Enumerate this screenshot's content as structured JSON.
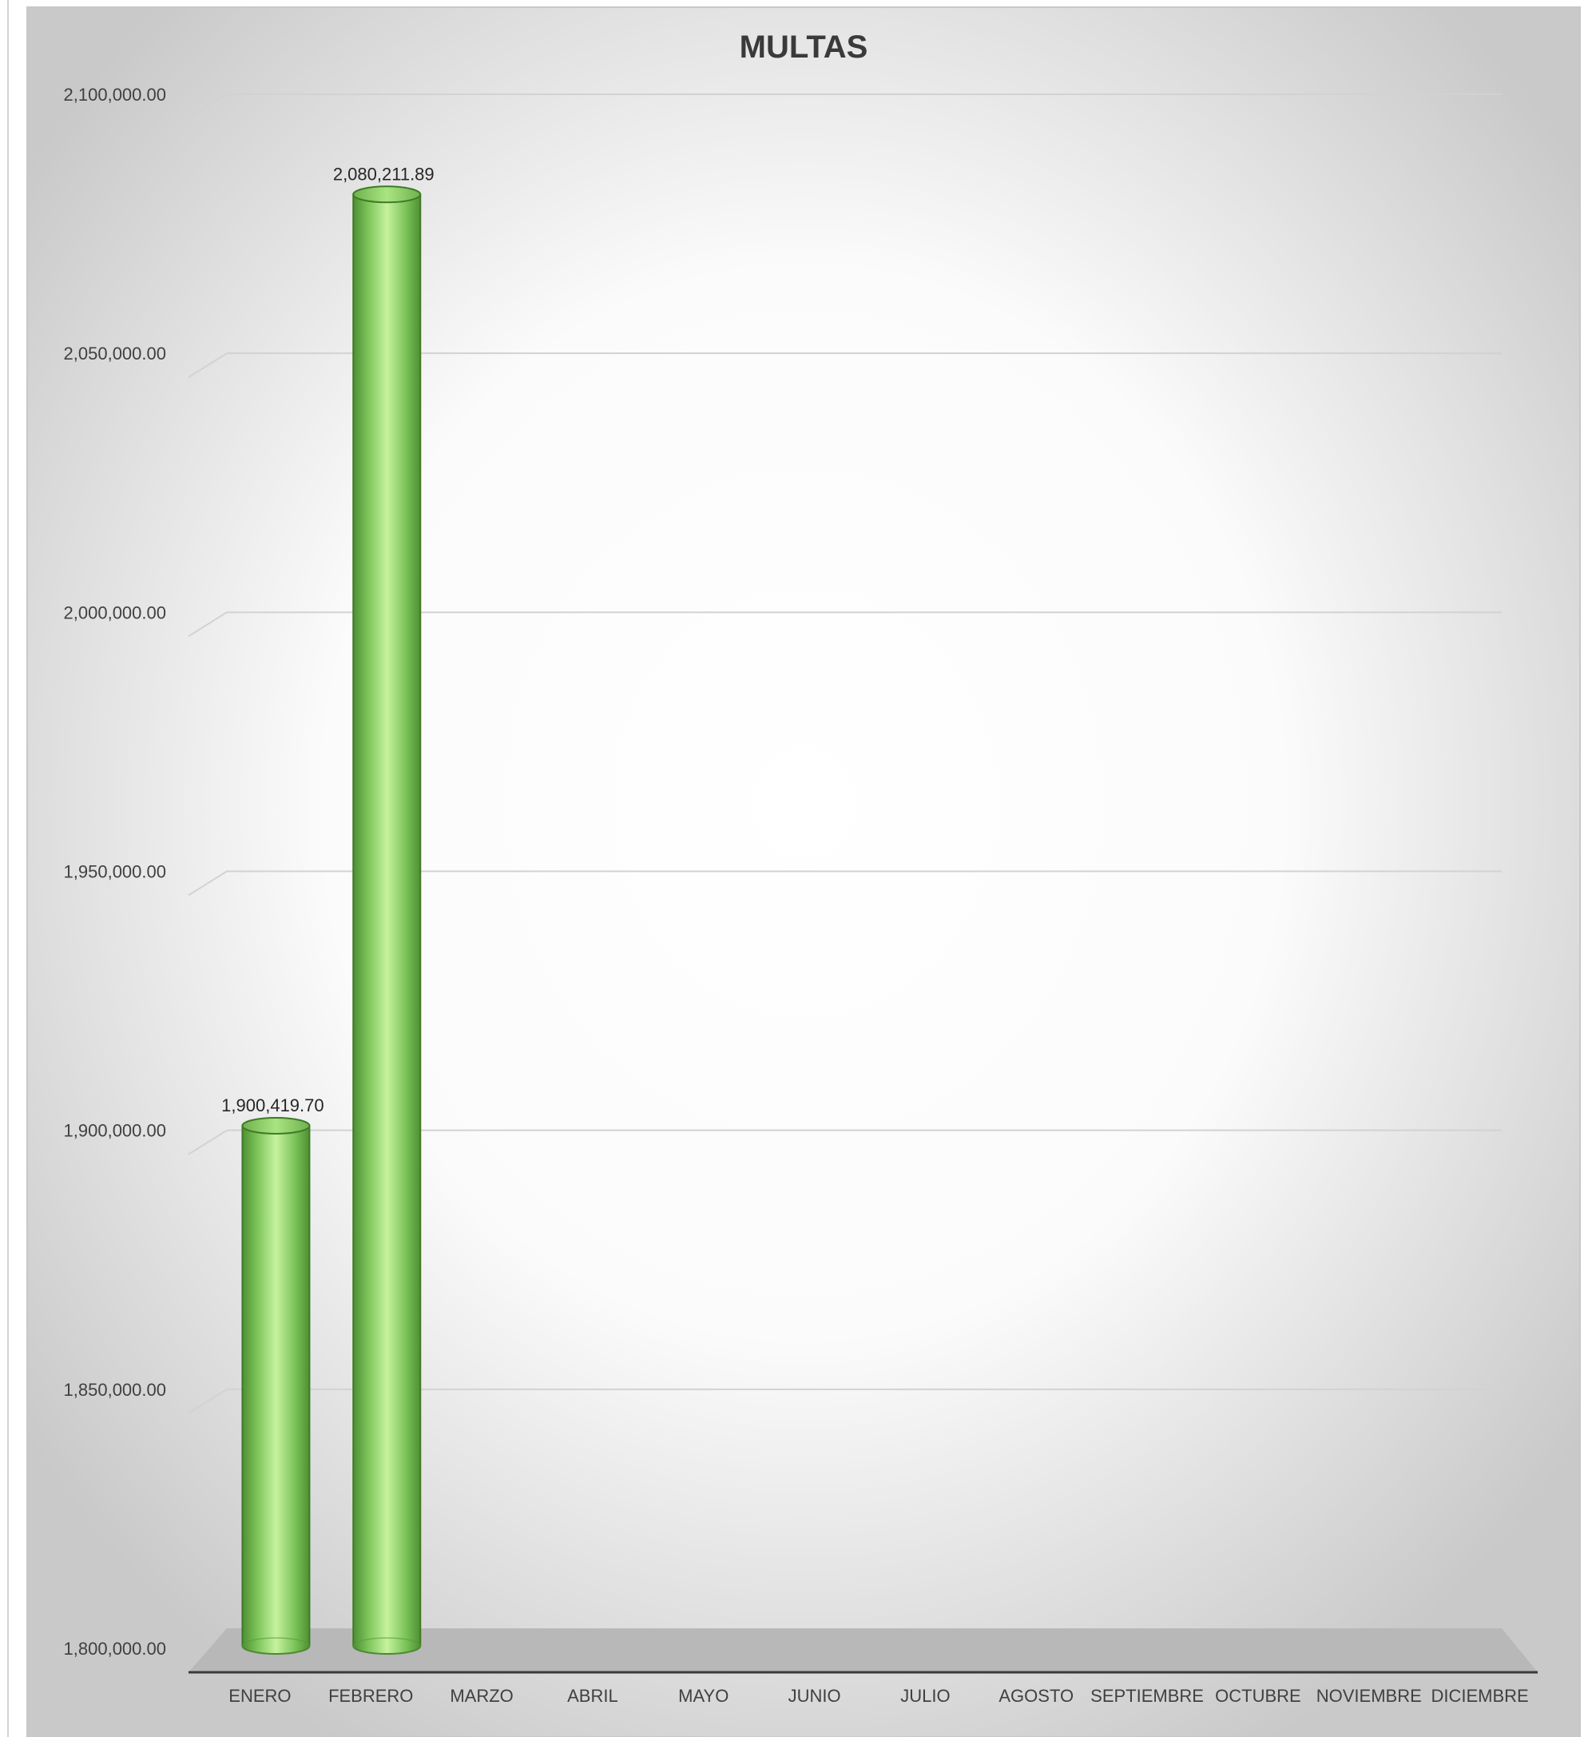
{
  "chart_data": {
    "type": "bar",
    "style": "3d-cylinder",
    "title": "MULTAS",
    "xlabel": "",
    "ylabel": "",
    "categories": [
      "ENERO",
      "FEBRERO",
      "MARZO",
      "ABRIL",
      "MAYO",
      "JUNIO",
      "JULIO",
      "AGOSTO",
      "SEPTIEMBRE",
      "OCTUBRE",
      "NOVIEMBRE",
      "DICIEMBRE"
    ],
    "values": [
      1900419.7,
      2080211.89,
      null,
      null,
      null,
      null,
      null,
      null,
      null,
      null,
      null,
      null
    ],
    "data_labels": [
      "1,900,419.70",
      "2,080,211.89",
      "",
      "",
      "",
      "",
      "",
      "",
      "",
      "",
      "",
      ""
    ],
    "ylim": [
      1800000,
      2100000
    ],
    "yticks": [
      1800000,
      1850000,
      1900000,
      1950000,
      2000000,
      2050000,
      2100000
    ],
    "ytick_labels": [
      "1,800,000.00",
      "1,850,000.00",
      "1,900,000.00",
      "1,950,000.00",
      "2,000,000.00",
      "2,050,000.00",
      "2,100,000.00"
    ],
    "grid": true,
    "legend": "none",
    "colors": {
      "bar": "#7cc45a",
      "bar_dark": "#4f8f33",
      "bar_highlight": "#c6f29e",
      "floor": "#b7b7b7",
      "gridline": "#cfcfcf",
      "background_center": "#ffffff",
      "background_edge": "#c9c9c9"
    }
  }
}
